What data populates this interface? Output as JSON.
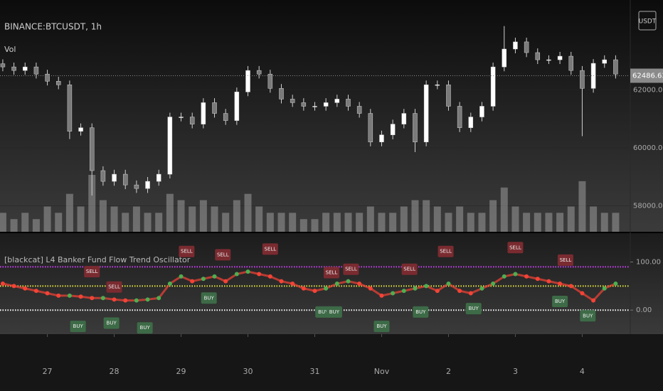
{
  "chart_data": [
    {
      "type": "candlestick",
      "title": "BINANCE:BTCUSDT, 1h",
      "volume_label": "Vol",
      "unit": "USDT",
      "x": [
        -16,
        -12,
        -8,
        -4,
        0,
        4,
        8,
        12,
        16,
        20,
        24,
        28,
        32,
        36,
        40,
        44,
        48,
        52,
        56,
        60,
        64,
        68,
        72,
        76,
        80,
        84,
        88,
        92,
        96,
        100,
        104,
        108,
        112,
        116,
        120,
        124,
        128,
        132,
        136,
        140,
        144,
        148,
        152,
        156,
        160,
        164,
        168,
        172,
        176,
        180,
        184,
        188,
        192,
        196,
        200,
        204
      ],
      "open": [
        62900,
        62790,
        62667,
        62790,
        62543,
        62296,
        62173,
        60568,
        60691,
        59210,
        58840,
        59086,
        58716,
        58593,
        58840,
        59086,
        61062,
        61062,
        60815,
        61556,
        61185,
        60938,
        61926,
        62667,
        62543,
        62049,
        61679,
        61556,
        61432,
        61432,
        61556,
        61679,
        61432,
        61185,
        60198,
        60444,
        60815,
        61185,
        60198,
        62173,
        62173,
        61432,
        60691,
        61062,
        61432,
        62790,
        63407,
        63654,
        63284,
        63037,
        63037,
        63160,
        62667,
        62049,
        62914,
        63037
      ],
      "high": [
        63050,
        62940,
        62940,
        62940,
        62690,
        62450,
        62320,
        60840,
        60840,
        59360,
        59240,
        59240,
        58870,
        58990,
        59240,
        61210,
        61210,
        61210,
        61710,
        61710,
        61340,
        62080,
        62820,
        62820,
        62690,
        62200,
        61830,
        61710,
        61580,
        61710,
        61830,
        61830,
        61580,
        61340,
        60590,
        60970,
        61340,
        61340,
        62320,
        62320,
        62320,
        61580,
        61210,
        61580,
        62940,
        64200,
        63800,
        63800,
        63430,
        63190,
        63310,
        63310,
        62820,
        63060,
        63190,
        63190
      ],
      "low": [
        62640,
        62520,
        62520,
        62390,
        62150,
        62020,
        60300,
        60420,
        58350,
        58690,
        58690,
        58570,
        58440,
        58440,
        58690,
        58940,
        60910,
        60670,
        60670,
        61040,
        60790,
        60790,
        61780,
        62390,
        61900,
        61530,
        61410,
        61280,
        61280,
        61280,
        61410,
        61280,
        61040,
        60050,
        60050,
        60290,
        60670,
        59850,
        60050,
        62020,
        61280,
        60540,
        60540,
        60910,
        61280,
        62640,
        63260,
        63130,
        62890,
        62890,
        62890,
        62520,
        60400,
        61900,
        62760,
        62390
      ],
      "close": [
        62790,
        62667,
        62790,
        62543,
        62296,
        62173,
        60568,
        60691,
        59210,
        58840,
        59086,
        58716,
        58593,
        58840,
        59086,
        61062,
        61062,
        60815,
        61556,
        61185,
        60938,
        61926,
        62667,
        62543,
        62049,
        61679,
        61556,
        61432,
        61432,
        61556,
        61679,
        61432,
        61185,
        60198,
        60444,
        60815,
        61185,
        60198,
        62173,
        62173,
        61432,
        60691,
        61062,
        61432,
        62790,
        63407,
        63654,
        63284,
        63037,
        63037,
        63160,
        62667,
        62049,
        62914,
        63037,
        62543
      ],
      "volume": [
        3,
        2,
        3,
        2,
        4,
        3,
        6,
        4,
        9,
        5,
        4,
        3,
        4,
        3,
        3,
        6,
        5,
        4,
        5,
        4,
        3,
        5,
        6,
        4,
        3,
        3,
        3,
        2,
        2,
        3,
        3,
        3,
        3,
        4,
        3,
        3,
        4,
        5,
        5,
        4,
        3,
        4,
        3,
        3,
        5,
        7,
        4,
        3,
        3,
        3,
        3,
        4,
        8,
        4,
        3,
        3
      ],
      "last_price": 62486.63,
      "xlim": [
        -17,
        209
      ],
      "ylim": [
        57100,
        65100
      ],
      "yticks": [
        {
          "value": 58000,
          "label": "58000.00"
        },
        {
          "value": 60000,
          "label": "60000.00"
        },
        {
          "value": 62000,
          "label": "62000.00"
        }
      ]
    },
    {
      "type": "line",
      "title": "[blackcat] L4 Banker Fund Flow Trend Oscillator",
      "x": [
        -16,
        -12,
        -8,
        -4,
        0,
        4,
        8,
        12,
        16,
        20,
        24,
        28,
        32,
        36,
        40,
        44,
        48,
        52,
        56,
        60,
        64,
        68,
        72,
        76,
        80,
        84,
        88,
        92,
        96,
        100,
        104,
        108,
        112,
        116,
        120,
        124,
        128,
        132,
        136,
        140,
        144,
        148,
        152,
        156,
        160,
        164,
        168,
        172,
        176,
        180,
        184,
        188,
        192,
        196,
        200,
        204
      ],
      "values": [
        55,
        50,
        45,
        40,
        35,
        30,
        30,
        28,
        25,
        25,
        22,
        20,
        20,
        22,
        25,
        55,
        70,
        60,
        65,
        70,
        60,
        75,
        80,
        75,
        70,
        60,
        55,
        45,
        40,
        45,
        55,
        60,
        55,
        45,
        30,
        35,
        40,
        45,
        50,
        40,
        55,
        40,
        35,
        45,
        55,
        70,
        75,
        70,
        65,
        60,
        55,
        50,
        35,
        20,
        45,
        55
      ],
      "colors": {
        "up": "#4caf50",
        "down": "#f44336"
      },
      "levels": [
        {
          "value": 90,
          "color": "#d040fb"
        },
        {
          "value": 50,
          "color": "#e6e645"
        },
        {
          "value": 0,
          "color": "#ffffff"
        }
      ],
      "signals": [
        {
          "label": "SELL",
          "x": 16,
          "y": 80,
          "color": "#7a2b30"
        },
        {
          "label": "SELL",
          "x": 24,
          "y": 48,
          "color": "#7a2b30"
        },
        {
          "label": "SELL",
          "x": 50,
          "y": 122,
          "color": "#7a2b30"
        },
        {
          "label": "SELL",
          "x": 63,
          "y": 115,
          "color": "#7a2b30"
        },
        {
          "label": "SELL",
          "x": 80,
          "y": 127,
          "color": "#7a2b30"
        },
        {
          "label": "SELL",
          "x": 102,
          "y": 78,
          "color": "#7a2b30"
        },
        {
          "label": "SELL",
          "x": 109,
          "y": 85,
          "color": "#7a2b30"
        },
        {
          "label": "SELL",
          "x": 130,
          "y": 85,
          "color": "#7a2b30"
        },
        {
          "label": "SELL",
          "x": 143,
          "y": 122,
          "color": "#7a2b30"
        },
        {
          "label": "SELL",
          "x": 168,
          "y": 130,
          "color": "#7a2b30"
        },
        {
          "label": "SELL",
          "x": 186,
          "y": 104,
          "color": "#7a2b30"
        },
        {
          "label": "BUY",
          "x": 11,
          "y": -34,
          "color": "#3d6b47"
        },
        {
          "label": "BUY",
          "x": 23,
          "y": -27,
          "color": "#3d6b47"
        },
        {
          "label": "BUY",
          "x": 35,
          "y": -37,
          "color": "#3d6b47"
        },
        {
          "label": "BUY",
          "x": 58,
          "y": 25,
          "color": "#3d6b47"
        },
        {
          "label": "BUY",
          "x": 99,
          "y": -4,
          "color": "#3d6b47"
        },
        {
          "label": "BUY",
          "x": 103,
          "y": -4,
          "color": "#3d6b47"
        },
        {
          "label": "BUY",
          "x": 120,
          "y": -34,
          "color": "#3d6b47"
        },
        {
          "label": "BUY",
          "x": 134,
          "y": -4,
          "color": "#3d6b47"
        },
        {
          "label": "BUY",
          "x": 153,
          "y": 3,
          "color": "#3d6b47"
        },
        {
          "label": "BUY",
          "x": 184,
          "y": 18,
          "color": "#3d6b47"
        },
        {
          "label": "BUY",
          "x": 194,
          "y": -12,
          "color": "#3d6b47"
        }
      ],
      "xlim": [
        -17,
        209
      ],
      "ylim": [
        -50,
        160
      ],
      "yticks": [
        {
          "value": 0,
          "label": "0.00"
        },
        {
          "value": 100,
          "label": "100.00"
        }
      ],
      "xticks": [
        {
          "value": 0,
          "label": "27"
        },
        {
          "value": 24,
          "label": "28"
        },
        {
          "value": 48,
          "label": "29"
        },
        {
          "value": 72,
          "label": "30"
        },
        {
          "value": 96,
          "label": "31"
        },
        {
          "value": 120,
          "label": "Nov"
        },
        {
          "value": 144,
          "label": "2"
        },
        {
          "value": 168,
          "label": "3"
        },
        {
          "value": 192,
          "label": "4"
        }
      ]
    }
  ]
}
